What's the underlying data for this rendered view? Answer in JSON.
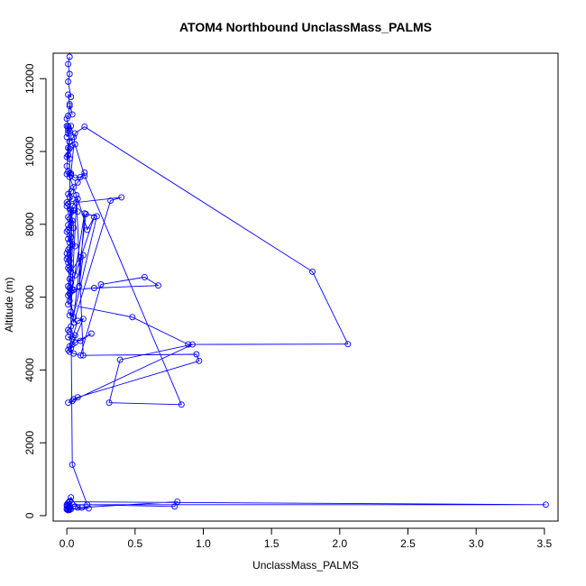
{
  "chart_data": {
    "type": "scatter",
    "title": "ATOM4 Northbound UnclassMass_PALMS",
    "xlabel": "UnclassMass_PALMS",
    "ylabel": "Altitude (m)",
    "xlim": [
      -0.1,
      3.6
    ],
    "ylim": [
      -150,
      12700
    ],
    "xticks": [
      0.0,
      0.5,
      1.0,
      1.5,
      2.0,
      2.5,
      3.0,
      3.5
    ],
    "xtick_labels": [
      "0.0",
      "0.5",
      "1.0",
      "1.5",
      "2.0",
      "2.5",
      "3.0",
      "3.5"
    ],
    "yticks": [
      0,
      2000,
      4000,
      6000,
      8000,
      10000,
      12000
    ],
    "ytick_labels": [
      "0",
      "2000",
      "4000",
      "6000",
      "8000",
      "10000",
      "12000"
    ],
    "grid": false,
    "connected": true,
    "series": [
      {
        "color": "#0000ff",
        "marker": "open-circle",
        "x": [
          0.02,
          0.01,
          0.02,
          0.01,
          0.03,
          0.01,
          0.02,
          0.04,
          0.02,
          0.01,
          0.0,
          0.01,
          0.02,
          0.0,
          0.01,
          0.02,
          0.01,
          0.0,
          0.02,
          0.01,
          0.0,
          0.01,
          0.03,
          0.05,
          0.02,
          0.01,
          0.0,
          0.01,
          0.02,
          0.0,
          0.03,
          0.06,
          0.1,
          0.13,
          0.08,
          0.05,
          0.03,
          0.01,
          0.02,
          0.04,
          0.0,
          0.01,
          0.0,
          0.02,
          0.05,
          0.08,
          0.03,
          0.01,
          0.02,
          0.04,
          0.03,
          0.01,
          0.02,
          0.01,
          0.0,
          0.02,
          0.03,
          0.01,
          0.02,
          0.04,
          0.06,
          0.02,
          0.01,
          0.0,
          0.02,
          0.01,
          0.0,
          0.02,
          0.01,
          0.02,
          0.01,
          0.02,
          0.03,
          0.1,
          0.12,
          0.09,
          0.13,
          0.04,
          0.02,
          0.05,
          0.03,
          0.01,
          0.02,
          0.04,
          0.08,
          0.15,
          0.2,
          0.06,
          0.02,
          0.03,
          0.01,
          0.02,
          0.05,
          0.32,
          0.4,
          0.07,
          0.03,
          0.02,
          0.05,
          0.14,
          0.22,
          0.03,
          0.01,
          0.02,
          0.06,
          0.01,
          0.04,
          0.1,
          0.18,
          0.06,
          0.04,
          0.12,
          0.08,
          0.02,
          0.03,
          0.01,
          0.02,
          0.05,
          0.1,
          0.25,
          0.57,
          0.67,
          0.2,
          0.05,
          0.03,
          0.02,
          0.01,
          0.48,
          0.89,
          2.06,
          1.8,
          0.13,
          0.06,
          0.03,
          0.02,
          0.07,
          0.12,
          0.95,
          0.97,
          0.08,
          0.05,
          0.04,
          0.01,
          0.92,
          0.39,
          0.31,
          0.84,
          0.13,
          0.06,
          0.01,
          0.02,
          0.04,
          0.15,
          0.79,
          0.81,
          0.08,
          0.03,
          0.02,
          0.01,
          0.0,
          0.06,
          0.11,
          0.16,
          0.03,
          0.02,
          3.51,
          0.01,
          0.0,
          0.02,
          0.01,
          0.02,
          0.0,
          0.01,
          0.0,
          0.02,
          0.01
        ],
        "y": [
          12600,
          12400,
          12130,
          11920,
          11500,
          11560,
          11300,
          11020,
          11250,
          10980,
          10900,
          10700,
          10560,
          10400,
          10500,
          10260,
          10100,
          9850,
          10080,
          10650,
          10700,
          10580,
          10700,
          10400,
          10280,
          9900,
          9600,
          9450,
          9400,
          9380,
          9350,
          9280,
          9300,
          9420,
          9150,
          9020,
          8900,
          8830,
          8750,
          8700,
          8600,
          8560,
          8500,
          8420,
          8380,
          8350,
          8320,
          8200,
          8150,
          8100,
          8050,
          7980,
          7900,
          7850,
          7800,
          7700,
          7650,
          7600,
          7500,
          7450,
          7400,
          7350,
          7300,
          7200,
          7150,
          7100,
          7050,
          7000,
          6950,
          6850,
          6800,
          6750,
          6700,
          7100,
          7150,
          6300,
          8300,
          6200,
          6100,
          7900,
          8400,
          6050,
          5900,
          8500,
          8700,
          7850,
          8200,
          6600,
          6500,
          6400,
          6300,
          6250,
          5300,
          8650,
          8740,
          8600,
          5600,
          5500,
          5450,
          8280,
          8220,
          5200,
          5100,
          5050,
          4950,
          4900,
          4850,
          4800,
          5000,
          4750,
          4700,
          5400,
          5350,
          4650,
          4600,
          4550,
          4500,
          4450,
          4400,
          6350,
          6550,
          6320,
          6250,
          6200,
          6150,
          6100,
          5800,
          5450,
          4700,
          4710,
          6700,
          10680,
          10500,
          9400,
          9300,
          8800,
          4400,
          4430,
          4250,
          3250,
          3200,
          3150,
          3100,
          4700,
          4280,
          3100,
          3050,
          9330,
          10200,
          9900,
          9800,
          1400,
          300,
          250,
          380,
          220,
          500,
          400,
          350,
          300,
          250,
          220,
          200,
          180,
          380,
          300,
          300,
          260,
          240,
          220,
          200,
          190,
          180,
          170,
          160,
          150
        ]
      }
    ]
  }
}
